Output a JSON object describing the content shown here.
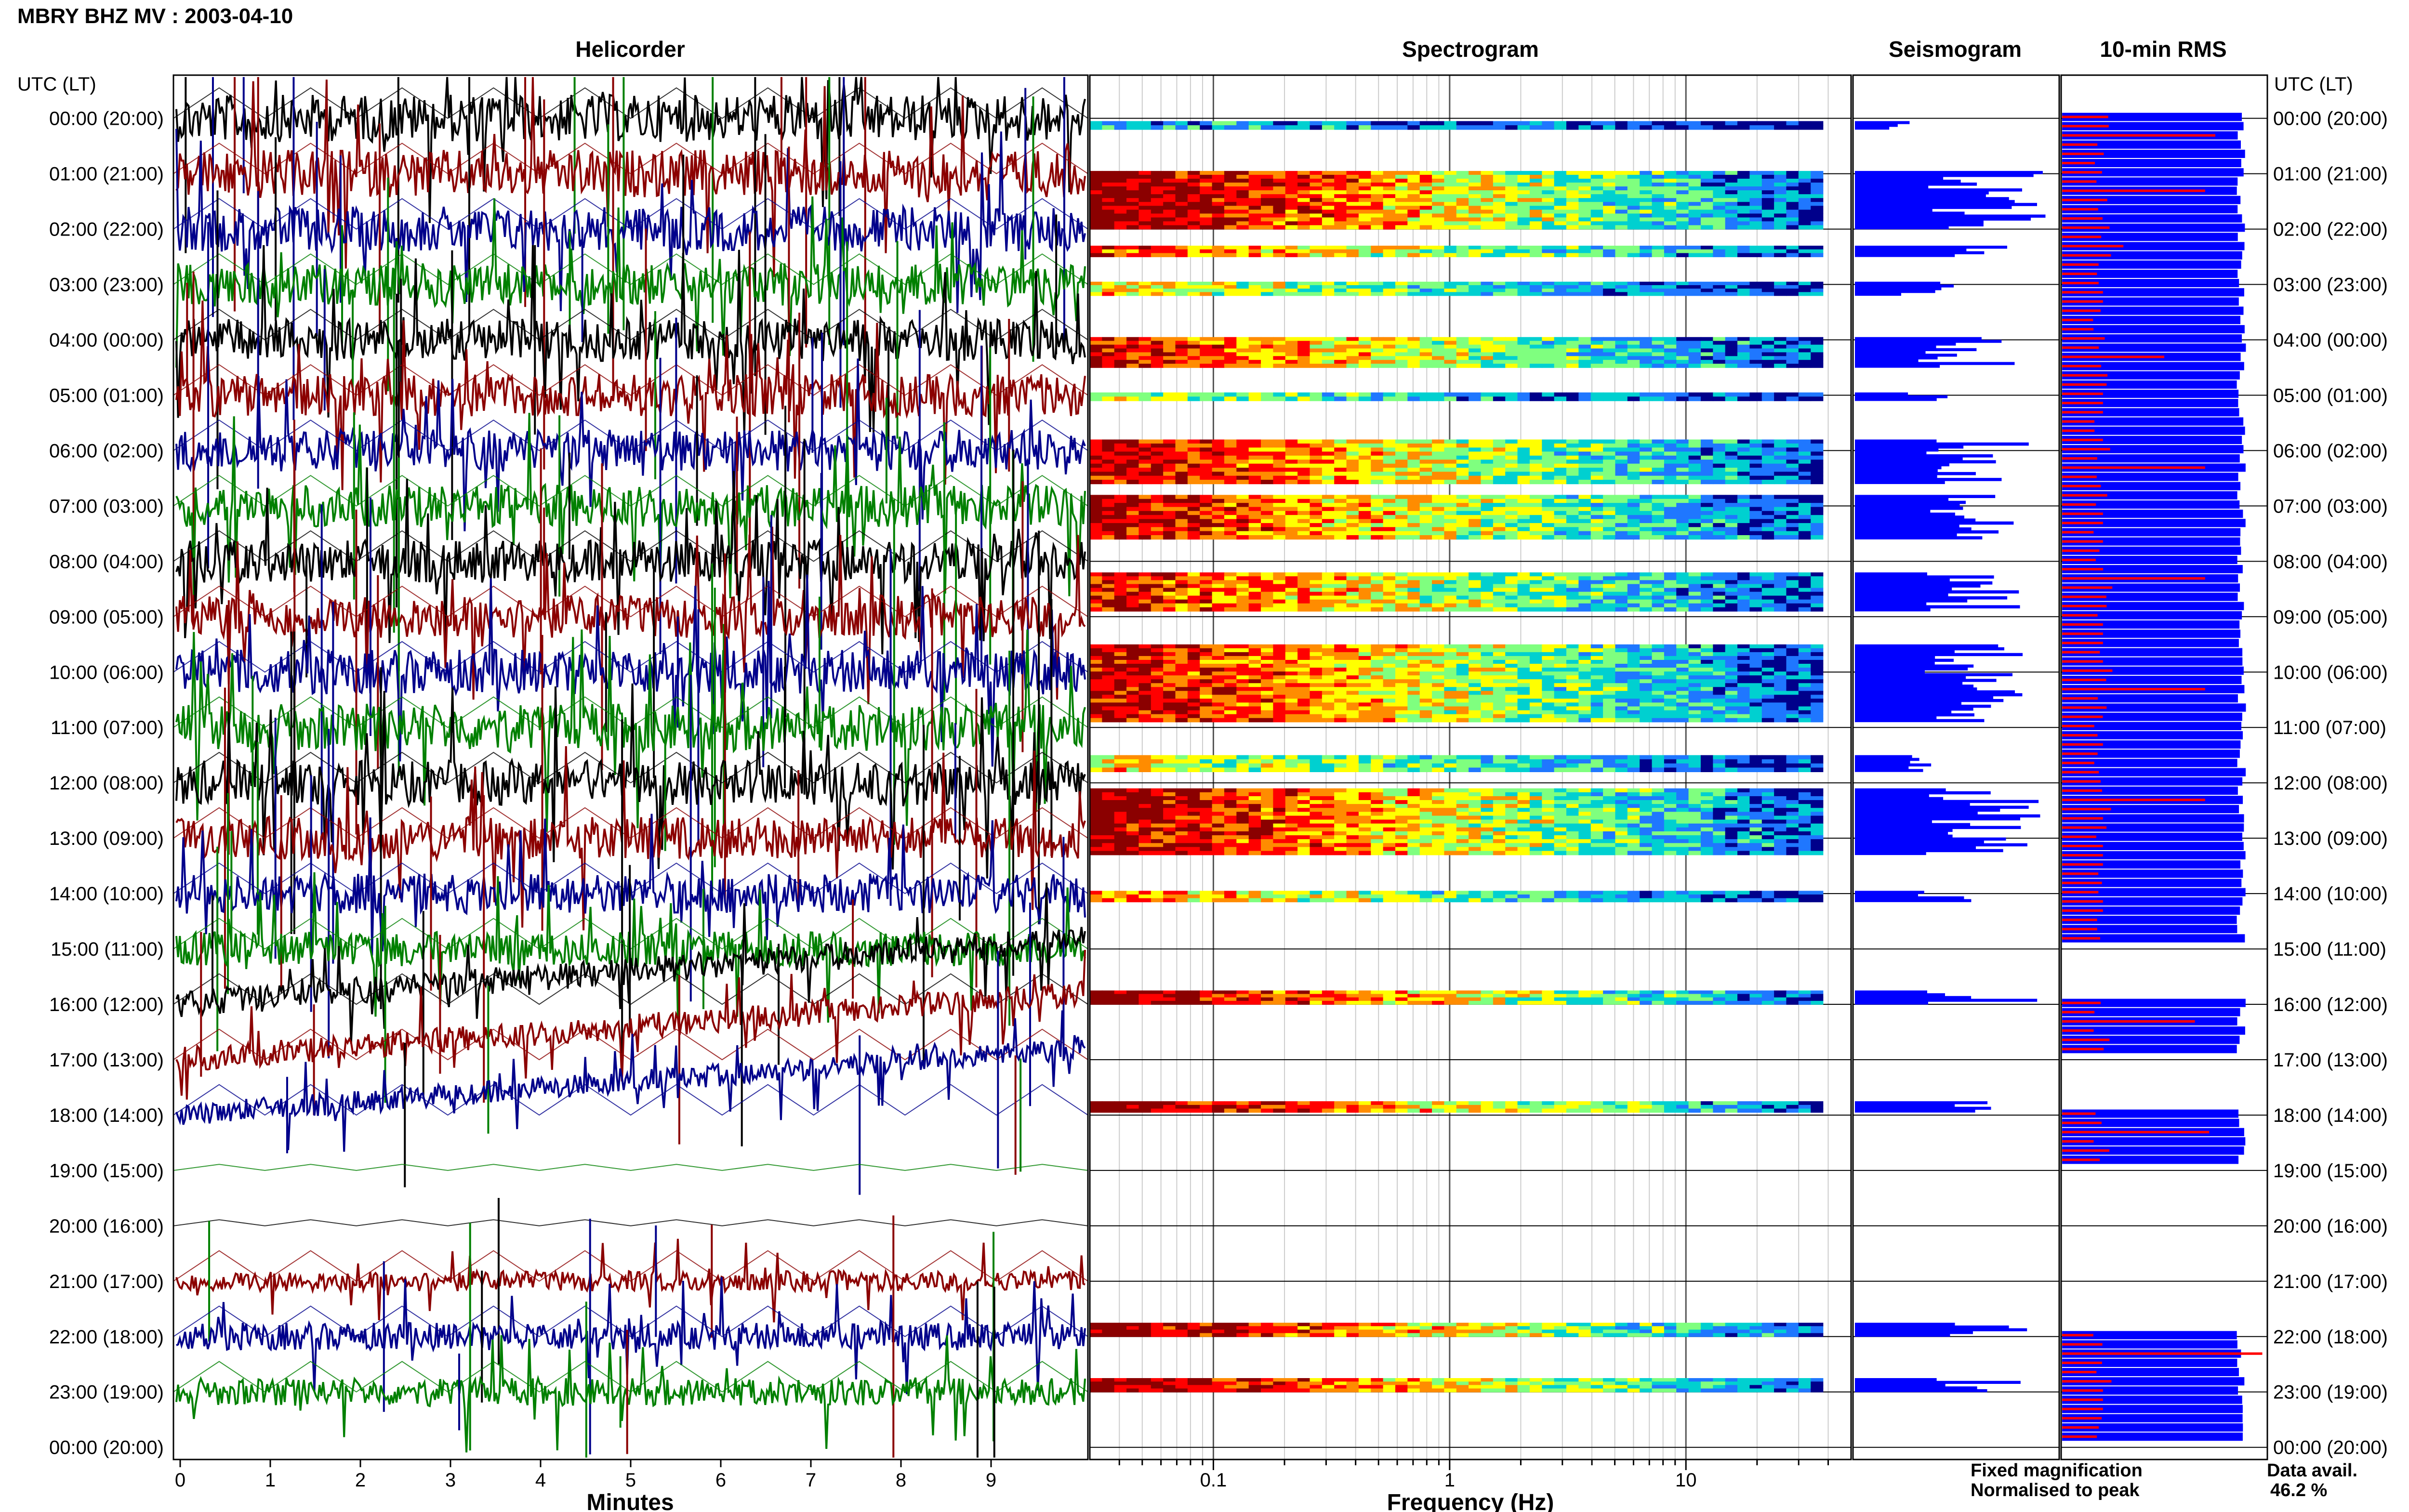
{
  "header": {
    "title": "MBRY BHZ MV : 2003-04-10"
  },
  "panels": {
    "helicorder": "Helicorder",
    "spectrogram": "Spectrogram",
    "seismogram": "Seismogram",
    "rms": "10-min RMS"
  },
  "time_axis": {
    "left_header": "UTC (LT)",
    "right_header": "UTC (LT)",
    "rows": [
      "00:00 (20:00)",
      "01:00 (21:00)",
      "02:00 (22:00)",
      "03:00 (23:00)",
      "04:00 (00:00)",
      "05:00 (01:00)",
      "06:00 (02:00)",
      "07:00 (03:00)",
      "08:00 (04:00)",
      "09:00 (05:00)",
      "10:00 (06:00)",
      "11:00 (07:00)",
      "12:00 (08:00)",
      "13:00 (09:00)",
      "14:00 (10:00)",
      "15:00 (11:00)",
      "16:00 (12:00)",
      "17:00 (13:00)",
      "18:00 (14:00)",
      "19:00 (15:00)",
      "20:00 (16:00)",
      "21:00 (17:00)",
      "22:00 (18:00)",
      "23:00 (19:00)",
      "00:00 (20:00)"
    ]
  },
  "legend": {
    "fixed": "Fixed magnification",
    "normalised": "Normalised to peak",
    "fixed_color": "#0000ff",
    "normalised_color": "#ff0000"
  },
  "availability": {
    "label": "Data avail.",
    "value": "46.2 %"
  },
  "colors": {
    "helicorder_traces": [
      "#000000",
      "#8b0000",
      "#00008b",
      "#008000"
    ],
    "spectrogram_scale": [
      "#00008b",
      "#1f77ff",
      "#00d0d0",
      "#7fff7f",
      "#ffff00",
      "#ff8c00",
      "#ff0000",
      "#8b0000"
    ]
  },
  "chart_data": [
    {
      "type": "line",
      "panel": "helicorder",
      "xlabel": "Minutes",
      "xlim": [
        0,
        10
      ],
      "xticks": [
        "0",
        "1",
        "2",
        "3",
        "4",
        "5",
        "6",
        "7",
        "8",
        "9"
      ],
      "row_activity": [
        0.95,
        0.95,
        0.9,
        0.85,
        0.85,
        0.85,
        0.85,
        0.85,
        0.85,
        0.85,
        0.9,
        0.95,
        0.9,
        0.85,
        0.8,
        0.7,
        0.55,
        0.5,
        0.45,
        0.0,
        0.0,
        0.4,
        0.55,
        0.55
      ]
    },
    {
      "type": "heatmap",
      "panel": "spectrogram",
      "xlabel": "Frequency (Hz)",
      "xscale": "log",
      "xlim": [
        0.03,
        50
      ],
      "xticks": [
        "0.1",
        "1",
        "10"
      ],
      "data_bands": [
        {
          "start": 0.05,
          "end": 0.2,
          "intensity": 0.3
        },
        {
          "start": 0.95,
          "end": 2.0,
          "intensity": 1.0
        },
        {
          "start": 2.3,
          "end": 2.5,
          "intensity": 0.8
        },
        {
          "start": 2.95,
          "end": 3.2,
          "intensity": 0.6
        },
        {
          "start": 3.95,
          "end": 4.5,
          "intensity": 0.85
        },
        {
          "start": 4.95,
          "end": 5.1,
          "intensity": 0.5
        },
        {
          "start": 5.8,
          "end": 6.6,
          "intensity": 0.9
        },
        {
          "start": 6.8,
          "end": 7.6,
          "intensity": 0.9
        },
        {
          "start": 8.2,
          "end": 8.9,
          "intensity": 0.85
        },
        {
          "start": 9.5,
          "end": 10.9,
          "intensity": 0.9
        },
        {
          "start": 11.5,
          "end": 11.8,
          "intensity": 0.6
        },
        {
          "start": 12.1,
          "end": 13.3,
          "intensity": 0.95
        },
        {
          "start": 13.95,
          "end": 14.15,
          "intensity": 0.7
        },
        {
          "start": 15.75,
          "end": 16.0,
          "intensity": 1.0
        },
        {
          "start": 17.75,
          "end": 17.95,
          "intensity": 1.0
        },
        {
          "start": 21.75,
          "end": 22.0,
          "intensity": 1.0
        },
        {
          "start": 22.75,
          "end": 23.0,
          "intensity": 1.0
        }
      ]
    },
    {
      "type": "bar",
      "panel": "10-min RMS",
      "series": [
        {
          "name": "Fixed magnification",
          "values_by_hour": [
            0.9,
            0.9,
            0.9,
            0.9,
            0.9,
            0.9,
            0.9,
            0.9,
            0.9,
            0.9,
            0.9,
            0.9,
            0.9,
            0.9,
            0.9,
            0,
            0.9,
            0,
            0.9,
            0,
            0,
            0,
            0.9,
            0.9
          ]
        },
        {
          "name": "Normalised to peak",
          "values_by_hour": [
            0.75,
            0.7,
            0.3,
            0.2,
            0.5,
            0.2,
            0.7,
            0.2,
            0.7,
            0.2,
            0.7,
            0.2,
            0.7,
            0.2,
            0.2,
            0,
            0.65,
            0,
            0.72,
            0,
            0,
            0,
            0.98,
            0.2
          ]
        }
      ]
    }
  ]
}
